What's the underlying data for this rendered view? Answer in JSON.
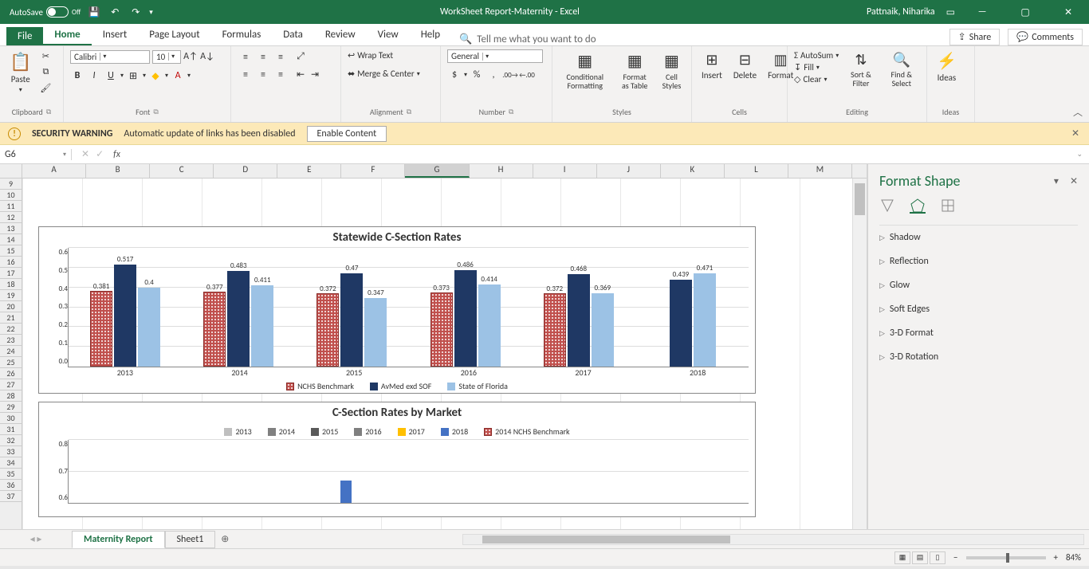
{
  "titlebar": {
    "autosave_label": "AutoSave",
    "autosave_state": "Off",
    "title": "WorkSheet Report-Maternity  -  Excel",
    "user": "Pattnaik, Niharika"
  },
  "tabs": {
    "file": "File",
    "list": [
      "Home",
      "Insert",
      "Page Layout",
      "Formulas",
      "Data",
      "Review",
      "View",
      "Help"
    ],
    "active": "Home",
    "tellme": "Tell me what you want to do",
    "share": "Share",
    "comments": "Comments"
  },
  "ribbon": {
    "clipboard": {
      "paste": "Paste",
      "label": "Clipboard"
    },
    "font": {
      "name": "Calibri",
      "size": "10",
      "label": "Font"
    },
    "alignment": {
      "wrap": "Wrap Text",
      "merge": "Merge & Center",
      "label": "Alignment"
    },
    "number": {
      "format": "General",
      "label": "Number"
    },
    "styles": {
      "cond": "Conditional Formatting",
      "fmt_table": "Format as Table",
      "cell_styles": "Cell Styles",
      "label": "Styles"
    },
    "cells": {
      "insert": "Insert",
      "delete": "Delete",
      "format": "Format",
      "label": "Cells"
    },
    "editing": {
      "autosum": "AutoSum",
      "fill": "Fill",
      "clear": "Clear",
      "sort": "Sort & Filter",
      "find": "Find & Select",
      "label": "Editing"
    },
    "ideas": {
      "ideas": "Ideas",
      "label": "Ideas"
    }
  },
  "security": {
    "title": "SECURITY WARNING",
    "msg": "Automatic update of links has been disabled",
    "btn": "Enable Content"
  },
  "namebox": "G6",
  "columns": [
    "A",
    "B",
    "C",
    "D",
    "E",
    "F",
    "G",
    "H",
    "I",
    "J",
    "K",
    "L",
    "M"
  ],
  "active_col": "G",
  "rows_start": 9,
  "rows_end": 37,
  "chart1": {
    "title": "Statewide C-Section Rates",
    "ymax": 0.6,
    "ystep": 0.1,
    "years": [
      "2013",
      "2014",
      "2015",
      "2016",
      "2017",
      "2018"
    ],
    "series": [
      {
        "name": "NCHS Benchmark",
        "color": "#c0504d",
        "pattern": true,
        "values": [
          0.381,
          0.377,
          0.372,
          0.373,
          0.372,
          null
        ]
      },
      {
        "name": "AvMed exd SOF",
        "color": "#1f3864",
        "pattern": false,
        "values": [
          0.517,
          0.483,
          0.47,
          0.486,
          0.468,
          0.439
        ]
      },
      {
        "name": "State of Florida",
        "color": "#9cc2e5",
        "pattern": false,
        "values": [
          0.4,
          0.411,
          0.347,
          0.414,
          0.369,
          0.471
        ]
      }
    ]
  },
  "chart2": {
    "title": "C-Section Rates by Market",
    "ymin": 0.6,
    "ymax": 0.8,
    "ystep": 0.1,
    "legend": [
      "2013",
      "2014",
      "2015",
      "2016",
      "2017",
      "2018",
      "2014 NCHS Benchmark"
    ],
    "legend_colors": [
      "#bfbfbf",
      "#808080",
      "#595959",
      "#7f7f7f",
      "#ffc000",
      "#4472c4",
      "#c0504d"
    ],
    "bar_value": 0.67,
    "bar_color": "#4472c4"
  },
  "format_pane": {
    "title": "Format Shape",
    "items": [
      "Shadow",
      "Reflection",
      "Glow",
      "Soft Edges",
      "3-D Format",
      "3-D Rotation"
    ]
  },
  "sheet_tabs": {
    "active": "Maternity Report",
    "others": [
      "Sheet1"
    ]
  },
  "status": {
    "zoom": "84%"
  }
}
